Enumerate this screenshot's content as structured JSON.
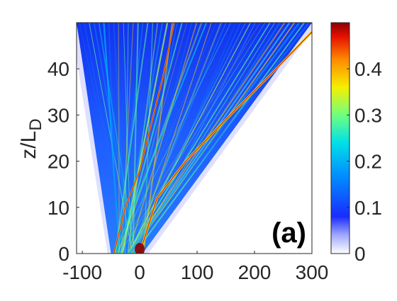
{
  "chart_data": {
    "type": "heatmap",
    "title": "",
    "xlabel": "",
    "ylabel": "z/L",
    "ylabel_subscript": "D",
    "panel_label": "(a)",
    "xlim": [
      -110,
      300
    ],
    "ylim": [
      0,
      50
    ],
    "x_ticks": [
      -100,
      0,
      100,
      200,
      300
    ],
    "y_ticks": [
      0,
      10,
      20,
      30,
      40
    ],
    "colorbar": {
      "range": [
        0,
        0.5
      ],
      "ticks": [
        0,
        0.1,
        0.2,
        0.3,
        0.4
      ],
      "colormap": "jet-from-white"
    },
    "features": {
      "left_fan_edge": [
        [
          -50,
          0
        ],
        [
          -110,
          50
        ]
      ],
      "right_fan_edge": [
        [
          5,
          0
        ],
        [
          300,
          50
        ]
      ],
      "main_soliton_track": [
        [
          0,
          0
        ],
        [
          30,
          12
        ],
        [
          80,
          20
        ],
        [
          150,
          29
        ],
        [
          230,
          39
        ],
        [
          300,
          48
        ]
      ],
      "secondary_soliton_track": [
        [
          -45,
          0
        ],
        [
          -25,
          10
        ],
        [
          0,
          18
        ],
        [
          20,
          28
        ],
        [
          40,
          38
        ],
        [
          60,
          50
        ]
      ]
    }
  }
}
